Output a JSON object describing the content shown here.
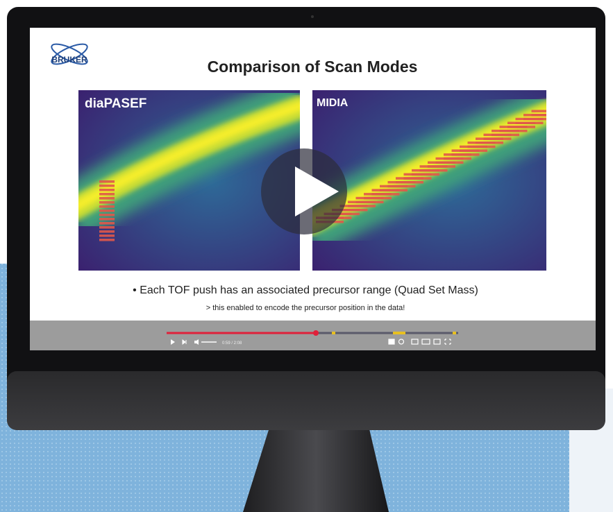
{
  "logo": "BRUKER",
  "slide": {
    "title": "Comparison of Scan Modes",
    "panels": [
      {
        "label": "diaPASEF"
      },
      {
        "label": "MIDIA"
      }
    ],
    "bullet": "• Each TOF push has an associated precursor range (Quad Set Mass)",
    "note": "> this enabled to encode the precursor position in the data!"
  },
  "player": {
    "time": "0:59 / 2:08"
  }
}
